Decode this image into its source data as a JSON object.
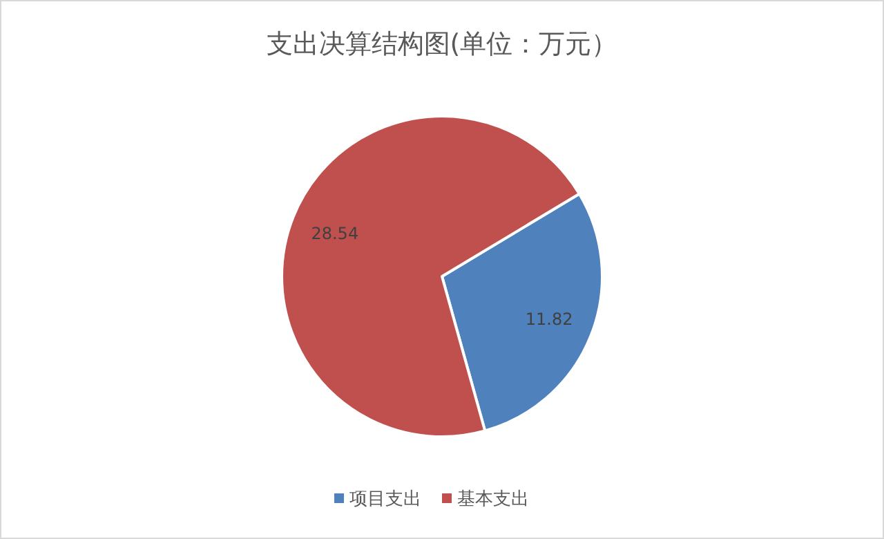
{
  "chart_data": {
    "type": "pie",
    "title": "支出决算结构图(单位：万元）",
    "categories": [
      "项目支出",
      "基本支出"
    ],
    "values": [
      11.82,
      28.54
    ],
    "colors": [
      "#4f81bd",
      "#c0504d"
    ],
    "data_labels": true,
    "legend": "bottom"
  }
}
